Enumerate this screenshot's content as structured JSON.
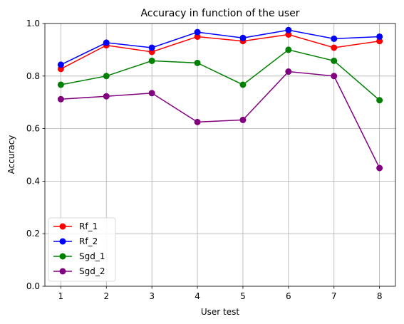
{
  "chart_data": {
    "type": "line",
    "title": "Accuracy in function of the user",
    "xlabel": "User test",
    "ylabel": "Accuracy",
    "x": [
      1,
      2,
      3,
      4,
      5,
      6,
      7,
      8
    ],
    "xlim": [
      0.65,
      8.35
    ],
    "ylim": [
      0.0,
      1.0
    ],
    "xticks": [
      "1",
      "2",
      "3",
      "4",
      "5",
      "6",
      "7",
      "8"
    ],
    "yticks": [
      "0.0",
      "0.2",
      "0.4",
      "0.6",
      "0.8",
      "1.0"
    ],
    "grid": true,
    "legend_position": "lower left",
    "series": [
      {
        "name": "Rf_1",
        "color": "#ff0000",
        "values": [
          0.827,
          0.917,
          0.892,
          0.95,
          0.933,
          0.958,
          0.908,
          0.933
        ]
      },
      {
        "name": "Rf_2",
        "color": "#0000ff",
        "values": [
          0.843,
          0.927,
          0.908,
          0.967,
          0.945,
          0.975,
          0.942,
          0.95
        ]
      },
      {
        "name": "Sgd_1",
        "color": "#008000",
        "values": [
          0.767,
          0.8,
          0.858,
          0.85,
          0.767,
          0.9,
          0.858,
          0.708
        ]
      },
      {
        "name": "Sgd_2",
        "color": "#800080",
        "values": [
          0.712,
          0.723,
          0.735,
          0.625,
          0.633,
          0.817,
          0.8,
          0.45
        ]
      }
    ]
  }
}
